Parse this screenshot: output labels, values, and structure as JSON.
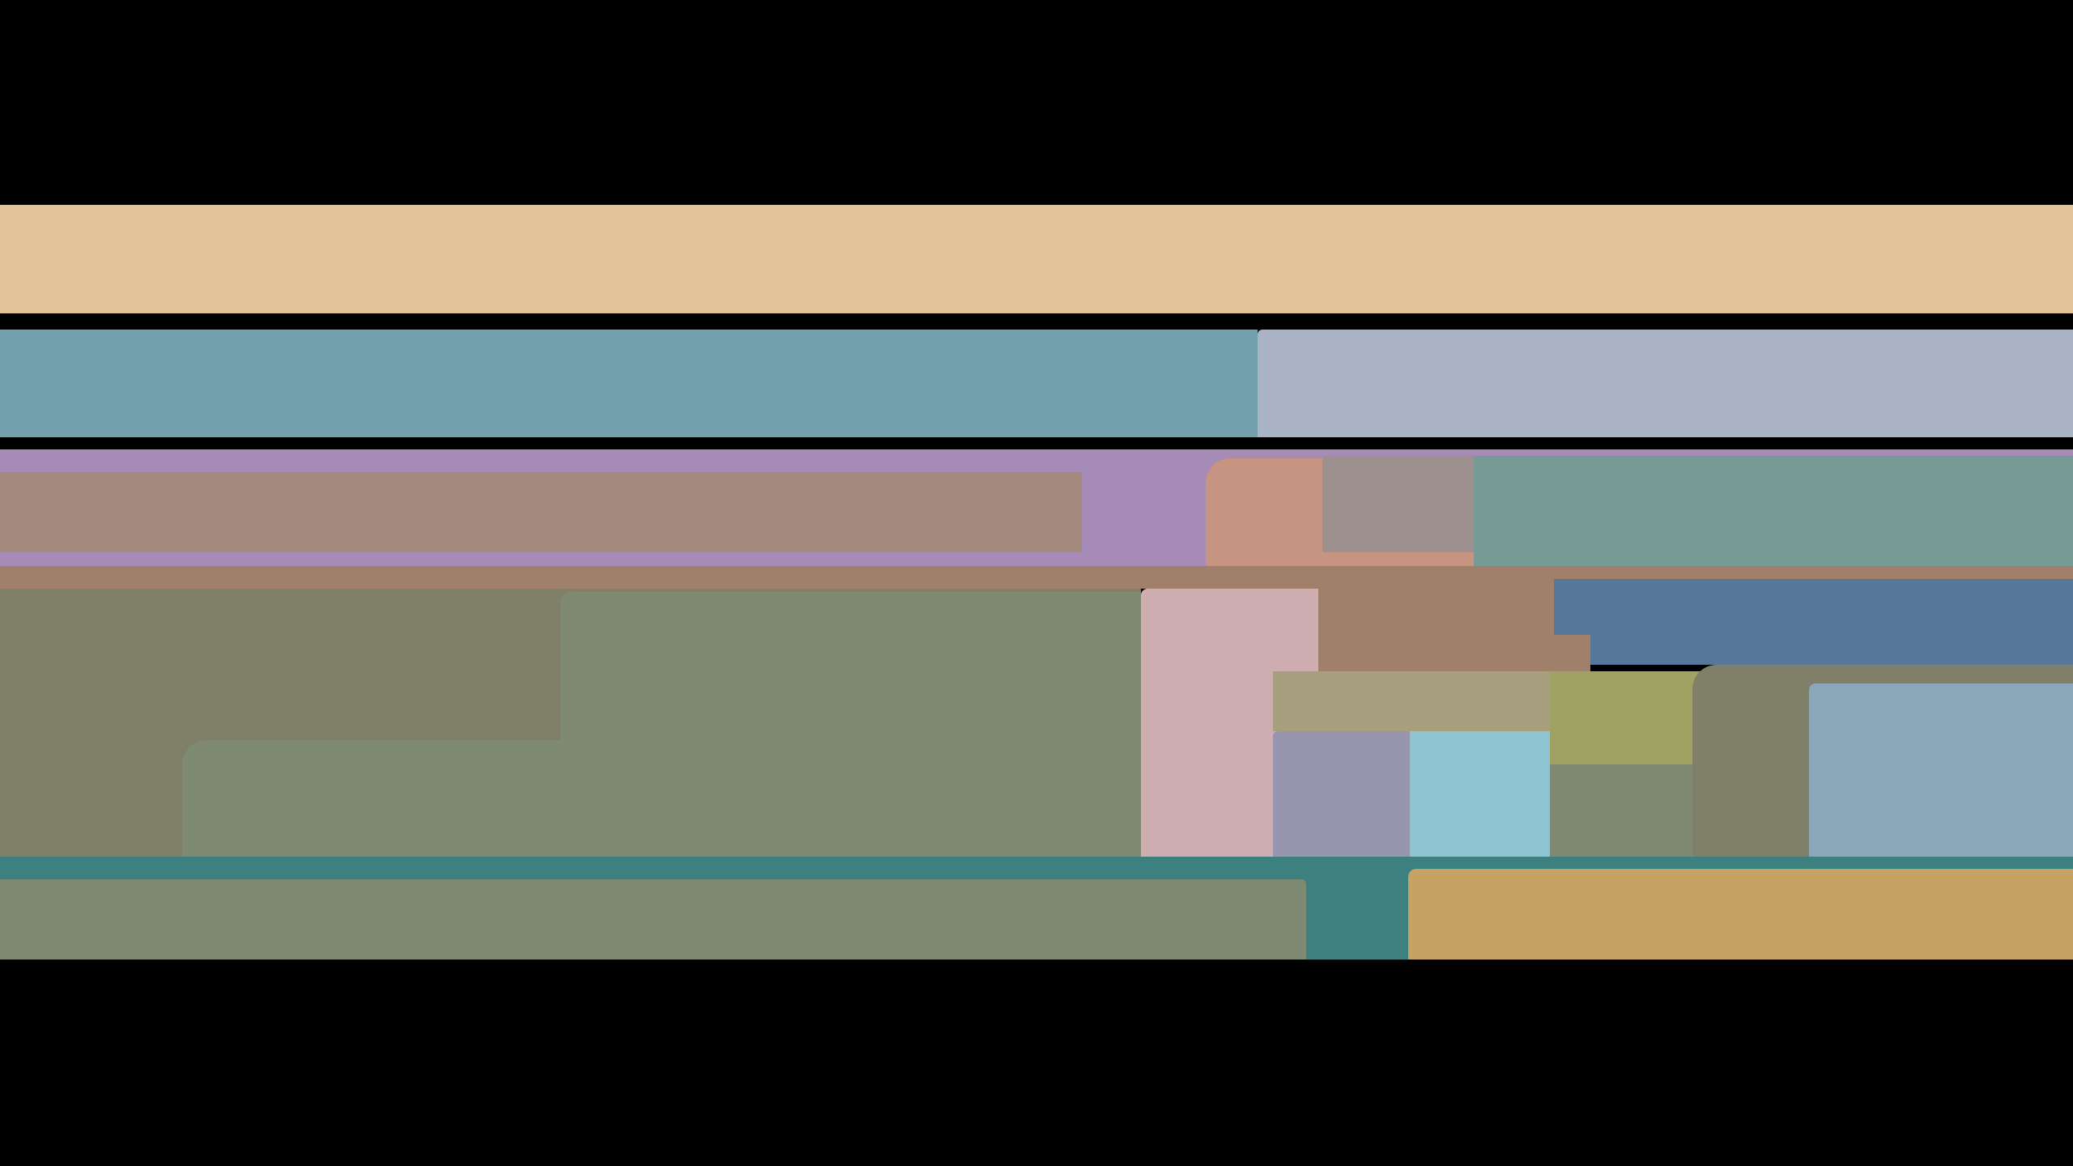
{
  "colors": {
    "background": "#000000",
    "tan": "#e3c298",
    "teal_blue": "#72a0ac",
    "gray_blue": "#aab4c5",
    "purple": "#a58bb5",
    "brown_gray": "#a48b7e",
    "salmon": "#c69480",
    "gray_mauve": "#9e908f",
    "teal_gray": "#769b94",
    "brown": "#a0806a",
    "olive_gray": "#807f67",
    "green_gray": "#7f8a72",
    "pink": "#ceaeb0",
    "blue": "#56769a",
    "khaki": "#a89f7f",
    "lavender": "#9796ae",
    "light_blue": "#8ec4d2",
    "olive_green": "#a0a263",
    "steel_blue": "#8aa8b9",
    "teal": "#3c8080",
    "gold": "#c7a265"
  }
}
